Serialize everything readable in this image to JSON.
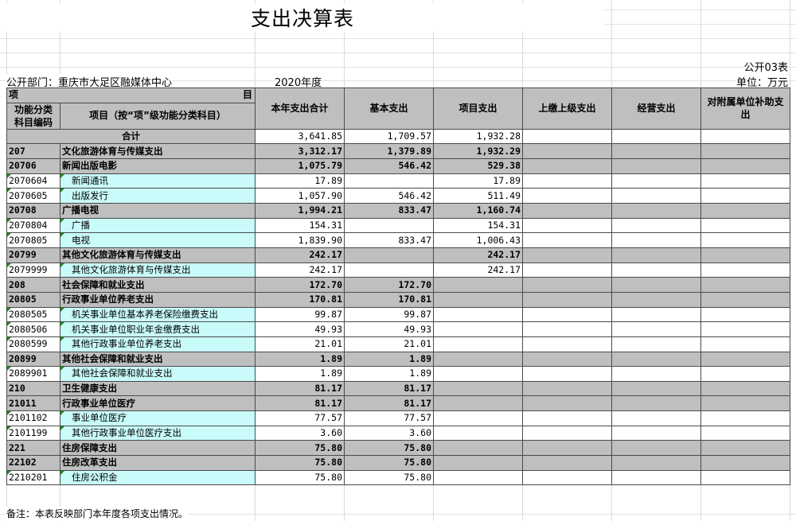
{
  "title": "支出决算表",
  "table_no": "公开03表",
  "department": "公开部门：重庆市大足区融媒体中心",
  "year": "2020年度",
  "unit": "单位：万元",
  "header": {
    "top_left": "项",
    "top_right": "目",
    "code_col": "功能分类科目编码",
    "name_col": "项目（按“项”级功能分类科目）",
    "columns": [
      "本年支出合计",
      "基本支出",
      "项目支出",
      "上缴上级支出",
      "经营支出",
      "对附属单位补助支出"
    ]
  },
  "total_row": {
    "label": "合计",
    "total": "3,641.85",
    "basic": "1,709.57",
    "project": "1,932.28"
  },
  "rows": [
    {
      "code": "207",
      "name": "文化旅游体育与传媒支出",
      "total": "3,312.17",
      "basic": "1,379.89",
      "project": "1,932.29",
      "level": 1
    },
    {
      "code": "20706",
      "name": "新闻出版电影",
      "total": "1,075.79",
      "basic": "546.42",
      "project": "529.38",
      "level": 1
    },
    {
      "code": "2070604",
      "name": "新闻通讯",
      "total": "17.89",
      "basic": "",
      "project": "17.89",
      "level": 2
    },
    {
      "code": "2070605",
      "name": "出版发行",
      "total": "1,057.90",
      "basic": "546.42",
      "project": "511.49",
      "level": 2
    },
    {
      "code": "20708",
      "name": "广播电视",
      "total": "1,994.21",
      "basic": "833.47",
      "project": "1,160.74",
      "level": 1
    },
    {
      "code": "2070804",
      "name": "广播",
      "total": "154.31",
      "basic": "",
      "project": "154.31",
      "level": 2
    },
    {
      "code": "2070805",
      "name": "电视",
      "total": "1,839.90",
      "basic": "833.47",
      "project": "1,006.43",
      "level": 2
    },
    {
      "code": "20799",
      "name": "其他文化旅游体育与传媒支出",
      "total": "242.17",
      "basic": "",
      "project": "242.17",
      "level": 1
    },
    {
      "code": "2079999",
      "name": "其他文化旅游体育与传媒支出",
      "total": "242.17",
      "basic": "",
      "project": "242.17",
      "level": 2
    },
    {
      "code": "208",
      "name": "社会保障和就业支出",
      "total": "172.70",
      "basic": "172.70",
      "project": "",
      "level": 1
    },
    {
      "code": "20805",
      "name": "行政事业单位养老支出",
      "total": "170.81",
      "basic": "170.81",
      "project": "",
      "level": 1
    },
    {
      "code": "2080505",
      "name": "机关事业单位基本养老保险缴费支出",
      "total": "99.87",
      "basic": "99.87",
      "project": "",
      "level": 2
    },
    {
      "code": "2080506",
      "name": "机关事业单位职业年金缴费支出",
      "total": "49.93",
      "basic": "49.93",
      "project": "",
      "level": 2
    },
    {
      "code": "2080599",
      "name": "其他行政事业单位养老支出",
      "total": "21.01",
      "basic": "21.01",
      "project": "",
      "level": 2
    },
    {
      "code": "20899",
      "name": "其他社会保障和就业支出",
      "total": "1.89",
      "basic": "1.89",
      "project": "",
      "level": 1
    },
    {
      "code": "2089901",
      "name": "其他社会保障和就业支出",
      "total": "1.89",
      "basic": "1.89",
      "project": "",
      "level": 2
    },
    {
      "code": "210",
      "name": "卫生健康支出",
      "total": "81.17",
      "basic": "81.17",
      "project": "",
      "level": 1
    },
    {
      "code": "21011",
      "name": "行政事业单位医疗",
      "total": "81.17",
      "basic": "81.17",
      "project": "",
      "level": 1
    },
    {
      "code": "2101102",
      "name": "事业单位医疗",
      "total": "77.57",
      "basic": "77.57",
      "project": "",
      "level": 2
    },
    {
      "code": "2101199",
      "name": "其他行政事业单位医疗支出",
      "total": "3.60",
      "basic": "3.60",
      "project": "",
      "level": 2
    },
    {
      "code": "221",
      "name": "住房保障支出",
      "total": "75.80",
      "basic": "75.80",
      "project": "",
      "level": 1
    },
    {
      "code": "22102",
      "name": "住房改革支出",
      "total": "75.80",
      "basic": "75.80",
      "project": "",
      "level": 1
    },
    {
      "code": "2210201",
      "name": "住房公积金",
      "total": "75.80",
      "basic": "75.80",
      "project": "",
      "level": 2
    }
  ],
  "note": "备注：本表反映部门本年度各项支出情况。",
  "colors": {
    "header_gray": "#bfbfbf",
    "leaf_cyan": "#c9fbfb",
    "comment_marker": "#1a8a1a"
  }
}
